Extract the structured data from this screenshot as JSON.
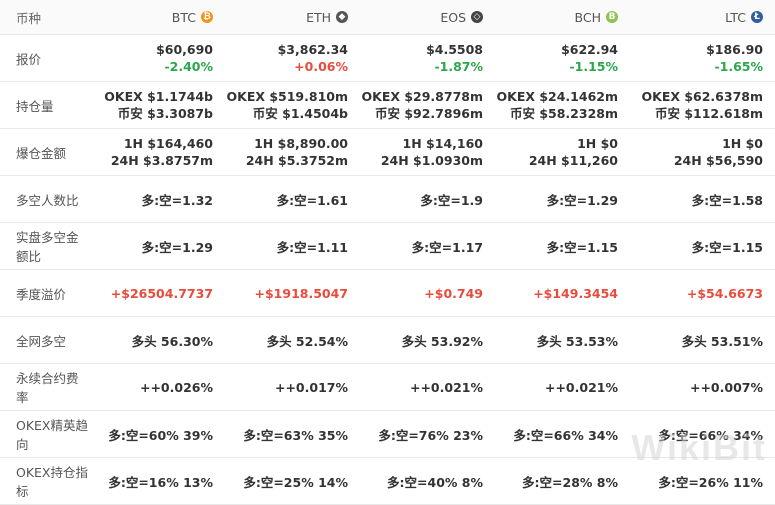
{
  "header": {
    "label": "币种",
    "coins": [
      {
        "name": "BTC",
        "icon": "btc-icon",
        "color": "#f7931a",
        "glyph": "₿"
      },
      {
        "name": "ETH",
        "icon": "eth-icon",
        "color": "#555555",
        "glyph": "◆"
      },
      {
        "name": "EOS",
        "icon": "eos-icon",
        "color": "#444444",
        "glyph": "◇"
      },
      {
        "name": "BCH",
        "icon": "bch-icon",
        "color": "#8dc351",
        "glyph": "B"
      },
      {
        "name": "LTC",
        "icon": "ltc-icon",
        "color": "#345d9d",
        "glyph": "Ł"
      }
    ]
  },
  "rows": {
    "price": {
      "label": "报价",
      "cells": [
        {
          "price": "$60,690",
          "change": "-2.40%",
          "dir": "neg"
        },
        {
          "price": "$3,862.34",
          "change": "+0.06%",
          "dir": "pos"
        },
        {
          "price": "$4.5508",
          "change": "-1.87%",
          "dir": "neg"
        },
        {
          "price": "$622.94",
          "change": "-1.15%",
          "dir": "neg"
        },
        {
          "price": "$186.90",
          "change": "-1.65%",
          "dir": "neg"
        }
      ]
    },
    "holdings": {
      "label": "持仓量",
      "cells": [
        {
          "l1": "OKEX  $1.1744b",
          "l2": "币安  $3.3087b"
        },
        {
          "l1": "OKEX  $519.810m",
          "l2": "币安  $1.4504b"
        },
        {
          "l1": "OKEX  $29.8778m",
          "l2": "币安  $92.7896m"
        },
        {
          "l1": "OKEX  $24.1462m",
          "l2": "币安  $58.2328m"
        },
        {
          "l1": "OKEX  $62.6378m",
          "l2": "币安  $112.618m"
        }
      ]
    },
    "liquidation": {
      "label": "爆仓金额",
      "cells": [
        {
          "l1": "1H  $164,460",
          "l2": "24H  $3.8757m"
        },
        {
          "l1": "1H  $8,890.00",
          "l2": "24H  $5.3752m"
        },
        {
          "l1": "1H  $14,160",
          "l2": "24H  $1.0930m"
        },
        {
          "l1": "1H  $0",
          "l2": "24H  $11,260"
        },
        {
          "l1": "1H  $0",
          "l2": "24H  $56,590"
        }
      ]
    },
    "ls_people": {
      "label": "多空人数比",
      "cells": [
        "多:空=1.32",
        "多:空=1.61",
        "多:空=1.9",
        "多:空=1.29",
        "多:空=1.58"
      ]
    },
    "ls_amount": {
      "label": "实盘多空金额比",
      "cells": [
        "多:空=1.29",
        "多:空=1.11",
        "多:空=1.17",
        "多:空=1.15",
        "多:空=1.15"
      ]
    },
    "premium": {
      "label": "季度溢价",
      "cells": [
        "+$26504.7737",
        "+$1918.5047",
        "+$0.749",
        "+$149.3454",
        "+$54.6673"
      ]
    },
    "network_ls": {
      "label": "全网多空",
      "cells": [
        "多头  56.30%",
        "多头  52.54%",
        "多头  53.92%",
        "多头  53.53%",
        "多头  53.51%"
      ]
    },
    "funding": {
      "label": "永续合约费率",
      "cells": [
        "++0.026%",
        "++0.017%",
        "++0.021%",
        "++0.021%",
        "++0.007%"
      ]
    },
    "elite": {
      "label": "OKEX精英趋向",
      "cells": [
        "多:空=60%  39%",
        "多:空=63%  35%",
        "多:空=76%  23%",
        "多:空=66%  34%",
        "多:空=66%  34%"
      ]
    },
    "okex_hold": {
      "label": "OKEX持仓指标",
      "cells": [
        "多:空=16%  13%",
        "多:空=25%  14%",
        "多:空=40%  8%",
        "多:空=28%  8%",
        "多:空=26%  11%"
      ]
    }
  },
  "watermark": "WikiBit"
}
